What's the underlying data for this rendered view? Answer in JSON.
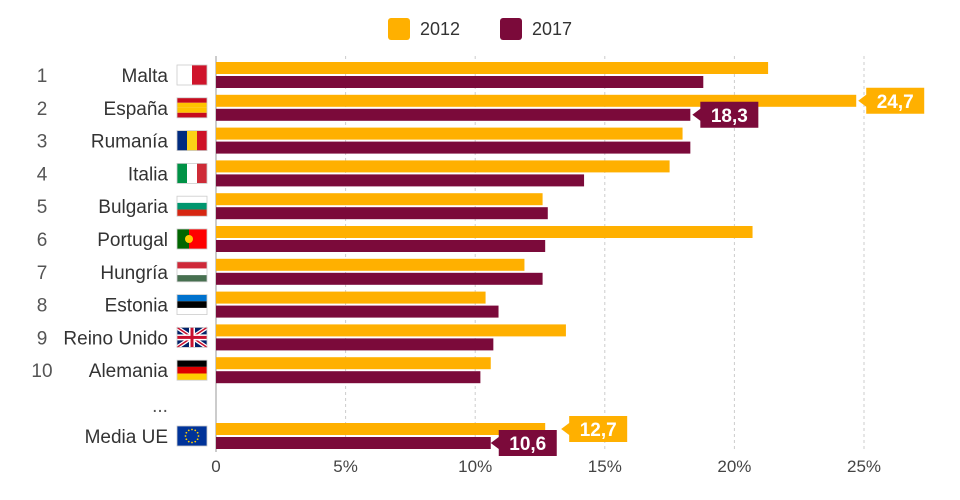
{
  "colors": {
    "s2012": "#ffb000",
    "s2017": "#7b0a3a",
    "grid": "#cccccc",
    "text": "#333333"
  },
  "chart_data": {
    "type": "bar",
    "orientation": "horizontal",
    "ranks": [
      "1",
      "2",
      "3",
      "4",
      "5",
      "6",
      "7",
      "8",
      "9",
      "10"
    ],
    "categories": [
      "Malta",
      "España",
      "Rumanía",
      "Italia",
      "Bulgaria",
      "Portugal",
      "Hungría",
      "Estonia",
      "Reino Unido",
      "Alemania"
    ],
    "flags": [
      "malta-flag",
      "spain-flag",
      "romania-flag",
      "italy-flag",
      "bulgaria-flag",
      "portugal-flag",
      "hungary-flag",
      "estonia-flag",
      "uk-flag",
      "germany-flag"
    ],
    "ellipsis": "...",
    "average": {
      "label": "Media UE",
      "flag": "eu-flag",
      "values": [
        12.7,
        10.6
      ],
      "value_labels": [
        "12,7",
        "10,6"
      ]
    },
    "series": [
      {
        "name": "2012",
        "values": [
          21.3,
          24.7,
          18.0,
          17.5,
          12.6,
          20.7,
          11.9,
          10.4,
          13.5,
          10.6
        ]
      },
      {
        "name": "2017",
        "values": [
          18.8,
          18.3,
          18.3,
          14.2,
          12.8,
          12.7,
          12.6,
          10.9,
          10.7,
          10.2
        ]
      }
    ],
    "callouts": [
      {
        "category": "España",
        "series": "2012",
        "label": "24,7"
      },
      {
        "category": "España",
        "series": "2017",
        "label": "18,3"
      }
    ],
    "xlim": [
      0,
      25
    ],
    "xticks": [
      0,
      5,
      10,
      15,
      20,
      25
    ],
    "xtick_labels": [
      "0",
      "5%",
      "10%",
      "15%",
      "20%",
      "25%"
    ],
    "legend_position": "top-center",
    "grid": true
  }
}
